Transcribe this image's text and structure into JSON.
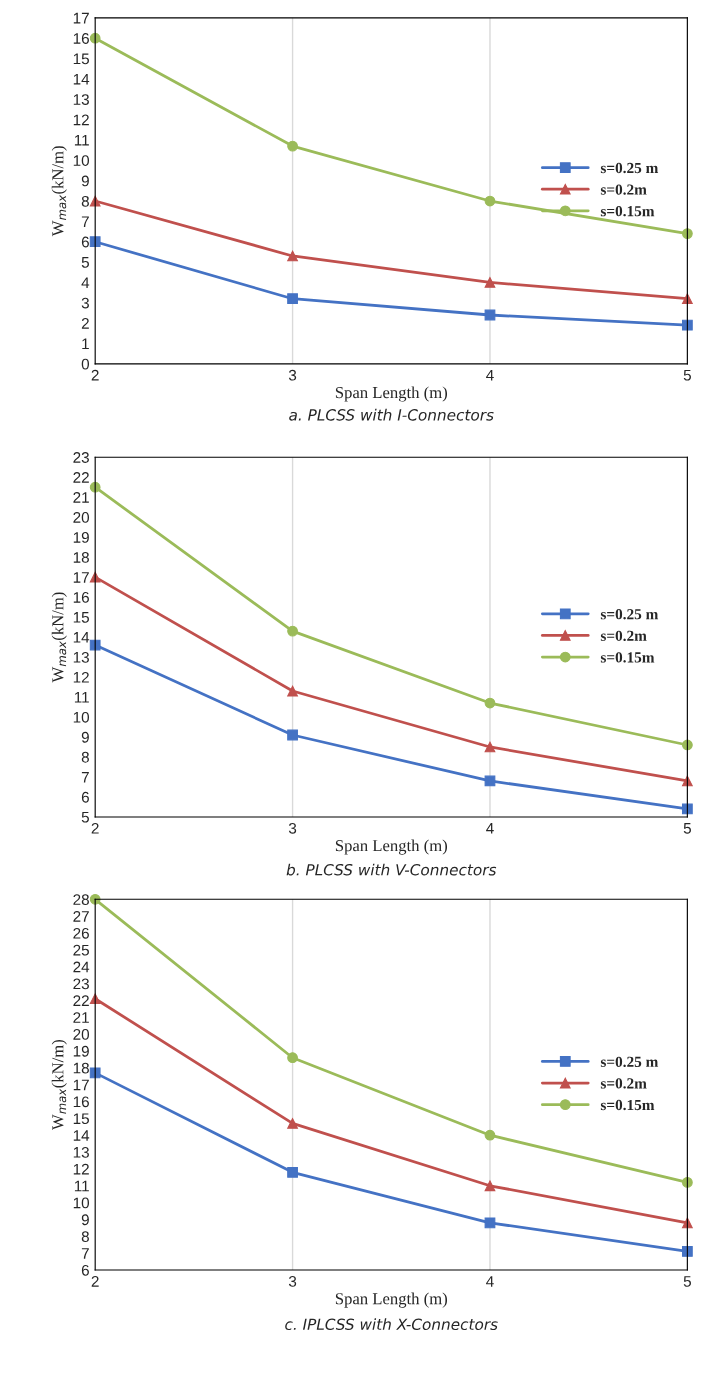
{
  "chart_data": [
    {
      "type": "line",
      "ylabel": "W$_{max}$(kN/m)",
      "xlabel": "Span Length (m)",
      "annotations": [
        "a. PLCSS with I-Connectors"
      ],
      "x": [
        2,
        3,
        4,
        5
      ],
      "xlim": [
        2,
        5
      ],
      "xticks": [
        2,
        3,
        4,
        5
      ],
      "ylim": [
        0,
        17
      ],
      "yticks": [
        0,
        1,
        2,
        3,
        4,
        5,
        6,
        7,
        8,
        9,
        10,
        11,
        12,
        13,
        14,
        15,
        16,
        17
      ],
      "grid": "x",
      "legend": "right",
      "series": [
        {
          "name": "s=0.25 m",
          "color": "#4472c4",
          "marker": "square",
          "values": [
            6,
            3.2,
            2.4,
            1.9
          ]
        },
        {
          "name": "s=0.2m",
          "color": "#c0504d",
          "marker": "triangle",
          "values": [
            8,
            5.3,
            4,
            3.2
          ]
        },
        {
          "name": "s=0.15m",
          "color": "#9bbb59",
          "marker": "circle",
          "values": [
            16,
            10.7,
            8,
            6.4
          ]
        }
      ]
    },
    {
      "type": "line",
      "ylabel": "W$_{max}$(kN/m)",
      "xlabel": "Span Length (m)",
      "annotations": [
        "b. PLCSS with V-Connectors"
      ],
      "x": [
        2,
        3,
        4,
        5
      ],
      "xlim": [
        2,
        5
      ],
      "xticks": [
        2,
        3,
        4,
        5
      ],
      "ylim": [
        5,
        23
      ],
      "yticks": [
        5,
        6,
        7,
        8,
        9,
        10,
        11,
        12,
        13,
        14,
        15,
        16,
        17,
        18,
        19,
        20,
        21,
        22,
        23
      ],
      "grid": "x",
      "legend": "right",
      "series": [
        {
          "name": "s=0.25 m",
          "color": "#4472c4",
          "marker": "square",
          "values": [
            13.6,
            9.1,
            6.8,
            5.4
          ]
        },
        {
          "name": "s=0.2m",
          "color": "#c0504d",
          "marker": "triangle",
          "values": [
            17,
            11.3,
            8.5,
            6.8
          ]
        },
        {
          "name": "s=0.15m",
          "color": "#9bbb59",
          "marker": "circle",
          "values": [
            21.5,
            14.3,
            10.7,
            8.6
          ]
        }
      ]
    },
    {
      "type": "line",
      "ylabel": "W$_{max}$(kN/m)",
      "xlabel": "Span Length (m)",
      "annotations": [
        "c. IPLCSS with X-Connectors"
      ],
      "x": [
        2,
        3,
        4,
        5
      ],
      "xlim": [
        2,
        5
      ],
      "xticks": [
        2,
        3,
        4,
        5
      ],
      "ylim": [
        6,
        28
      ],
      "yticks": [
        6,
        7,
        8,
        9,
        10,
        11,
        12,
        13,
        14,
        15,
        16,
        17,
        18,
        19,
        20,
        21,
        22,
        23,
        24,
        25,
        26,
        27,
        28
      ],
      "grid": "x",
      "legend": "right",
      "series": [
        {
          "name": "s=0.25 m",
          "color": "#4472c4",
          "marker": "square",
          "values": [
            17.7,
            11.8,
            8.8,
            7.1
          ]
        },
        {
          "name": "s=0.2m",
          "color": "#c0504d",
          "marker": "triangle",
          "values": [
            22.1,
            14.7,
            11,
            8.8
          ]
        },
        {
          "name": "s=0.15m",
          "color": "#9bbb59",
          "marker": "circle",
          "values": [
            28,
            18.6,
            14,
            11.2
          ]
        }
      ]
    }
  ]
}
